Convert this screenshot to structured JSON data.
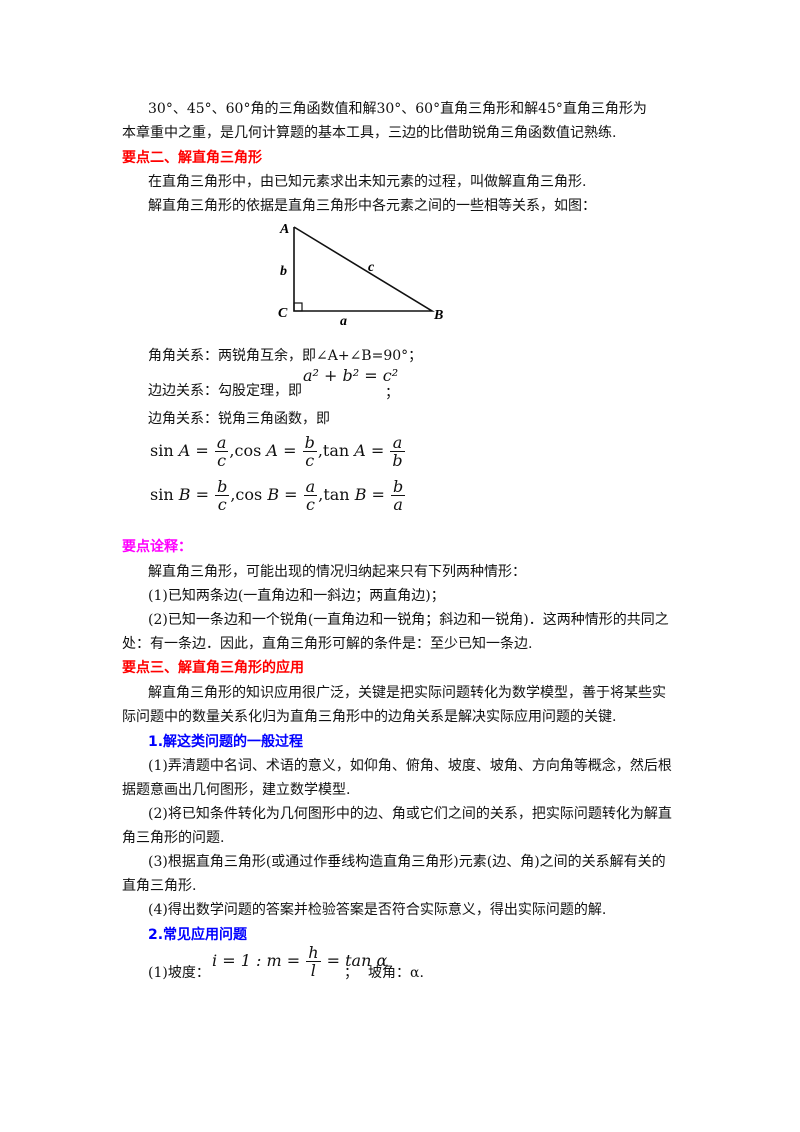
{
  "intro": {
    "line1": "30°、45°、60°角的三角函数值和解30°、60°直角三角形和解45°直角三角形为",
    "line2": "本章重中之重，是几何计算题的基本工具，三边的比借助锐角三角函数值记熟练."
  },
  "section2": {
    "heading": "要点二、解直角三角形",
    "p1": "在直角三角形中，由已知元素求出未知元素的过程，叫做解直角三角形.",
    "p2": "解直角三角形的依据是直角三角形中各元素之间的一些相等关系，如图："
  },
  "figure": {
    "vertex_a": "A",
    "vertex_b": "B",
    "vertex_c": "C",
    "side_a": "a",
    "side_b": "b",
    "side_c": "c"
  },
  "relations": {
    "angle": "角角关系：两锐角互余，即∠A+∠B=90°；",
    "side_prefix": "边边关系：勾股定理，即",
    "side_formula": "a² + b² = c²",
    "side_suffix": "；",
    "side_angle": "边角关系：锐角三角函数，即"
  },
  "trig": {
    "row1": [
      {
        "func": "sin",
        "angle": "A",
        "num": "a",
        "den": "c"
      },
      {
        "func": "cos",
        "angle": "A",
        "num": "b",
        "den": "c"
      },
      {
        "func": "tan",
        "angle": "A",
        "num": "a",
        "den": "b"
      }
    ],
    "row2": [
      {
        "func": "sin",
        "angle": "B",
        "num": "b",
        "den": "c"
      },
      {
        "func": "cos",
        "angle": "B",
        "num": "a",
        "den": "c"
      },
      {
        "func": "tan",
        "angle": "B",
        "num": "b",
        "den": "a"
      }
    ]
  },
  "notes": {
    "heading": "要点诠释：",
    "p1": "解直角三角形，可能出现的情况归纳起来只有下列两种情形：",
    "p2": "(1)已知两条边(一直角边和一斜边；两直角边)；",
    "p3a": "(2)已知一条边和一个锐角(一直角边和一锐角；斜边和一锐角)．这两种情形的共同之",
    "p3b": "处：有一条边．因此，直角三角形可解的条件是：至少已知一条边."
  },
  "section3": {
    "heading": "要点三、解直角三角形的应用",
    "p1a": "解直角三角形的知识应用很广泛，关键是把实际问题转化为数学模型，善于将某些实",
    "p1b": "际问题中的数量关系化归为直角三角形中的边角关系是解决实际应用问题的关键.",
    "sub1": "1.解这类问题的一般过程",
    "s1a": "(1)弄清题中名词、术语的意义，如仰角、俯角、坡度、坡角、方向角等概念，然后根",
    "s1b": "据题意画出几何图形，建立数学模型.",
    "s2a": "(2)将已知条件转化为几何图形中的边、角或它们之间的关系，把实际问题转化为解直",
    "s2b": "角三角形的问题.",
    "s3a": "(3)根据直角三角形(或通过作垂线构造直角三角形)元素(边、角)之间的关系解有关的",
    "s3b": "直角三角形.",
    "s4": "(4)得出数学问题的答案并检验答案是否符合实际意义，得出实际问题的解.",
    "sub2": "2.常见应用问题",
    "slope_prefix": "(1)坡度：",
    "slope_lhs": "i = 1 : m =",
    "slope_num": "h",
    "slope_den": "l",
    "slope_rhs": "= tan α",
    "slope_sep": "；",
    "slope_angle": "坡角：α."
  }
}
